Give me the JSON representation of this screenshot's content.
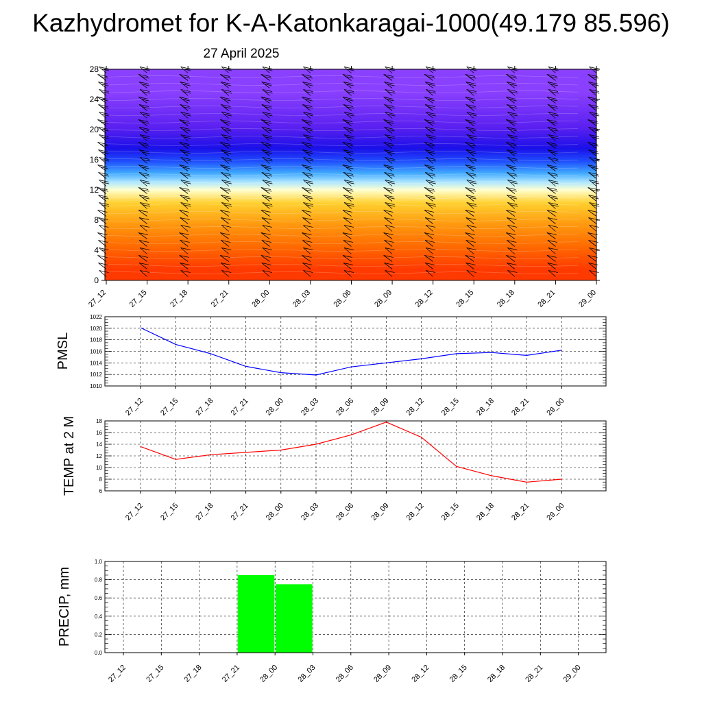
{
  "header": {
    "title": "Kazhydromet for K-A-Katonkaragai-1000(49.179 85.596)",
    "subtitle": "27 April 2025"
  },
  "chart_data": [
    {
      "type": "heatmap",
      "name": "vertical-cross-section",
      "x": [
        "27_12",
        "27_15",
        "27_18",
        "27_21",
        "28_00",
        "28_03",
        "28_06",
        "28_09",
        "28_12",
        "28_15",
        "28_18",
        "28_21",
        "29_00"
      ],
      "yticks": [
        "0",
        "4",
        "8",
        "12",
        "16",
        "20",
        "24",
        "28"
      ],
      "ylim": [
        0,
        28
      ],
      "bands": [
        {
          "from": 0,
          "to": 3,
          "color": "#ff3a00"
        },
        {
          "from": 3,
          "to": 6,
          "color": "#ff6a00"
        },
        {
          "from": 6,
          "to": 9,
          "color": "#ff9a10"
        },
        {
          "from": 9,
          "to": 11.5,
          "color": "#ffd030"
        },
        {
          "from": 11.5,
          "to": 12.5,
          "color": "#ffffd0"
        },
        {
          "from": 12.5,
          "to": 13.5,
          "color": "#b0e8ff"
        },
        {
          "from": 13.5,
          "to": 15,
          "color": "#40a8ff"
        },
        {
          "from": 15,
          "to": 16.5,
          "color": "#2050ff"
        },
        {
          "from": 16.5,
          "to": 18.5,
          "color": "#1a10e8"
        },
        {
          "from": 18.5,
          "to": 22,
          "color": "#5a20f0"
        },
        {
          "from": 22,
          "to": 28,
          "color": "#8a40ff"
        }
      ],
      "wind_barbs": true
    },
    {
      "type": "line",
      "name": "pmsl",
      "ylabel": "PMSL",
      "x": [
        "27_12",
        "27_15",
        "27_18",
        "27_21",
        "28_00",
        "28_03",
        "28_06",
        "28_09",
        "28_12",
        "28_15",
        "28_18",
        "28_21",
        "29_00"
      ],
      "series": [
        {
          "values": [
            1020.1,
            1017.2,
            1015.6,
            1013.4,
            1012.3,
            1011.9,
            1013.3,
            1014.0,
            1014.7,
            1015.6,
            1015.8,
            1015.3,
            1016.2
          ],
          "color": "#0000ff"
        }
      ],
      "yticks": [
        "1010",
        "1012",
        "1014",
        "1016",
        "1018",
        "1020",
        "1022"
      ],
      "ylim": [
        1010,
        1022
      ],
      "grid": true
    },
    {
      "type": "line",
      "name": "temp",
      "ylabel": "TEMP at 2 M",
      "x": [
        "27_12",
        "27_15",
        "27_18",
        "27_21",
        "28_00",
        "28_03",
        "28_06",
        "28_09",
        "28_12",
        "28_15",
        "28_18",
        "28_21",
        "29_00"
      ],
      "series": [
        {
          "values": [
            13.6,
            11.4,
            12.2,
            12.6,
            13.0,
            14.0,
            15.6,
            17.8,
            15.2,
            10.2,
            8.6,
            7.5,
            8.0
          ],
          "color": "#ff0000"
        }
      ],
      "yticks": [
        "6",
        "8",
        "10",
        "12",
        "14",
        "16",
        "18"
      ],
      "ylim": [
        6,
        18
      ],
      "grid": true
    },
    {
      "type": "bar",
      "name": "precip",
      "ylabel": "PRECIP, mm",
      "categories": [
        "27_12",
        "27_15",
        "27_18",
        "27_21",
        "28_00",
        "28_03",
        "28_06",
        "28_09",
        "28_12",
        "28_15",
        "28_18",
        "28_21",
        "29_00"
      ],
      "values": [
        0,
        0,
        0,
        0,
        0.85,
        0.75,
        0,
        0,
        0,
        0,
        0,
        0,
        0
      ],
      "color": "#00ff00",
      "yticks": [
        "0.0",
        "0.2",
        "0.4",
        "0.6",
        "0.8",
        "1.0"
      ],
      "ylim": [
        0,
        1
      ],
      "grid": true
    }
  ]
}
